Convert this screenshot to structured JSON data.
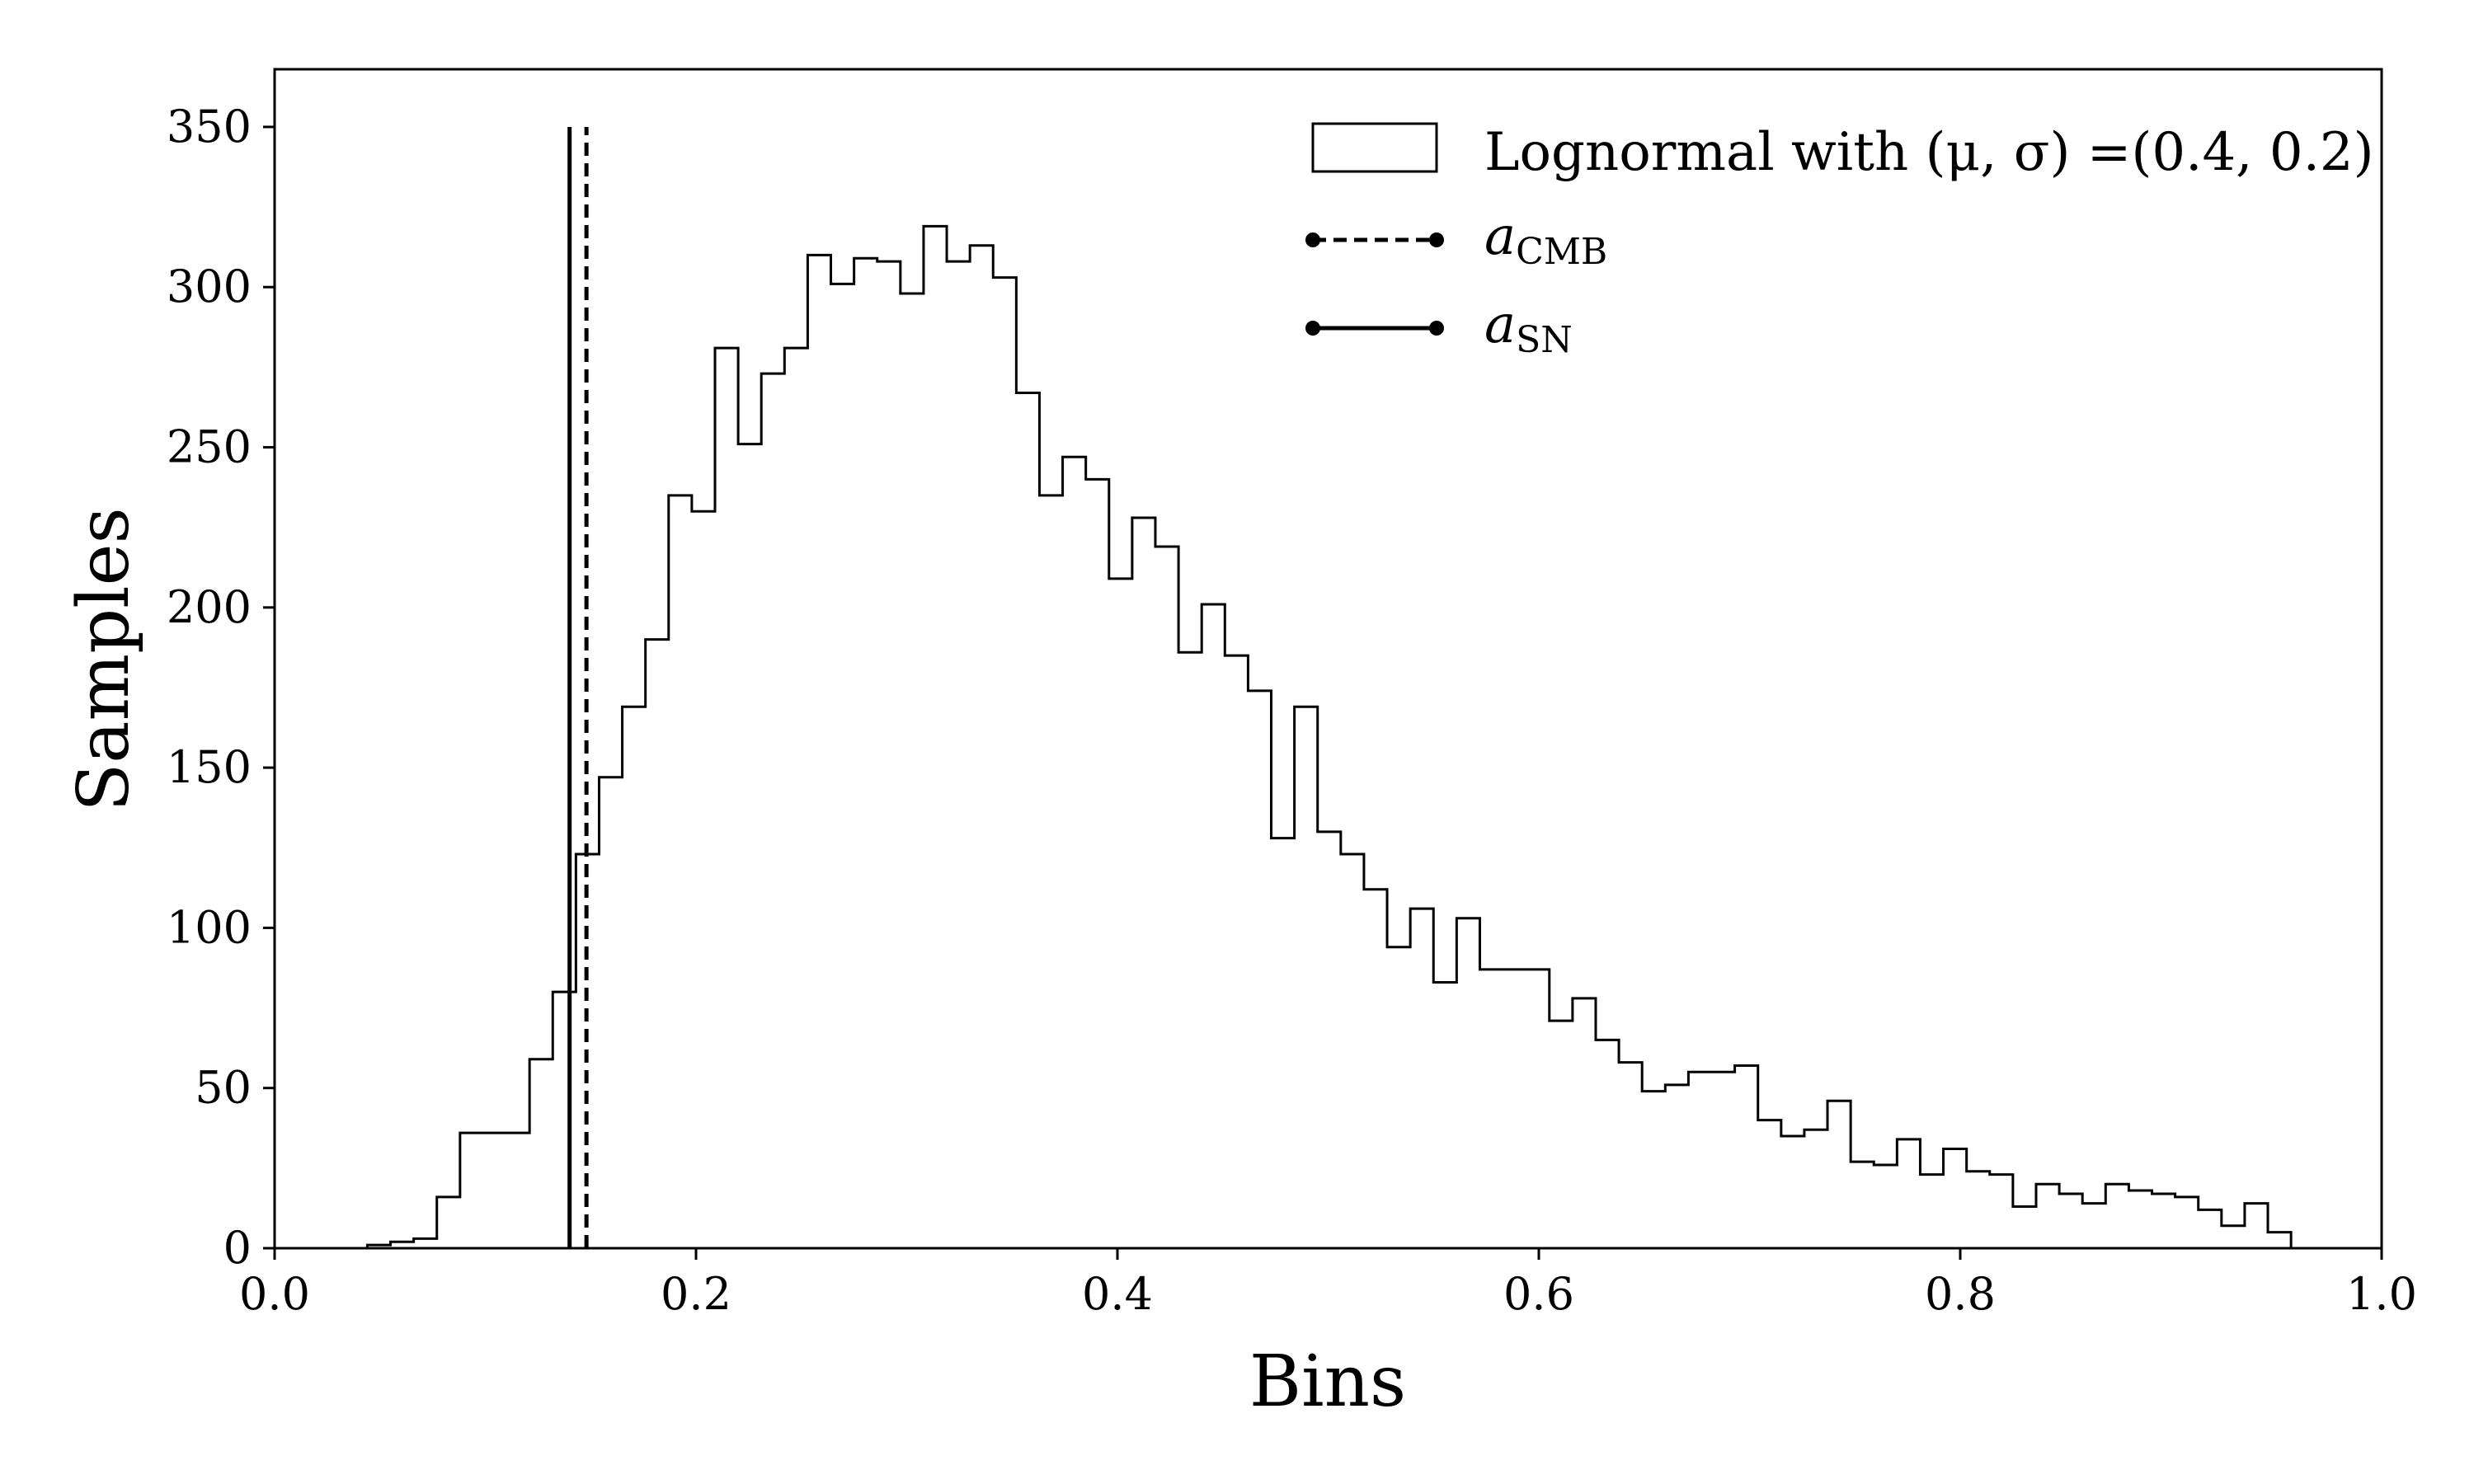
{
  "chart_data": {
    "type": "histogram",
    "xlabel": "Bins",
    "ylabel": "Samples",
    "xlim": [
      0.0,
      1.0
    ],
    "ylim": [
      0,
      368
    ],
    "xticks": [
      "0.0",
      "0.2",
      "0.4",
      "0.6",
      "0.8",
      "1.0"
    ],
    "yticks": [
      "0",
      "50",
      "100",
      "150",
      "200",
      "250",
      "300",
      "350"
    ],
    "grid": false,
    "legend_position": "top-right",
    "bin_edges_start": 0.0,
    "bin_width": 0.011,
    "counts": [
      0,
      0,
      0,
      0,
      1,
      2,
      3,
      16,
      36,
      36,
      36,
      59,
      80,
      123,
      147,
      169,
      190,
      235,
      230,
      281,
      251,
      273,
      281,
      310,
      301,
      309,
      308,
      298,
      319,
      308,
      313,
      303,
      267,
      235,
      247,
      240,
      209,
      228,
      219,
      186,
      201,
      185,
      174,
      128,
      169,
      130,
      123,
      112,
      94,
      106,
      83,
      103,
      87,
      87,
      87,
      71,
      78,
      65,
      58,
      49,
      51,
      55,
      55,
      57,
      40,
      35,
      37,
      46,
      27,
      26,
      34,
      23,
      31,
      24,
      23,
      13,
      20,
      17,
      14,
      20,
      18,
      17,
      16,
      12,
      7,
      14,
      5
    ],
    "series": [
      {
        "name": "Lognormal with (μ, σ) =(0.4, 0.2)",
        "kind": "step-histogram",
        "color": "#000000"
      }
    ],
    "vertical_lines": [
      {
        "name": "a_CMB",
        "x": 0.148,
        "ymax": 350,
        "style": "dashed",
        "color": "#000000"
      },
      {
        "name": "a_SN",
        "x": 0.14,
        "ymax": 350,
        "style": "solid",
        "color": "#000000"
      }
    ],
    "legend": {
      "hist_label": "Lognormal with (μ, σ) =(0.4, 0.2)",
      "cmb_base": "a",
      "cmb_sub": "CMB",
      "sn_base": "a",
      "sn_sub": "SN"
    }
  }
}
